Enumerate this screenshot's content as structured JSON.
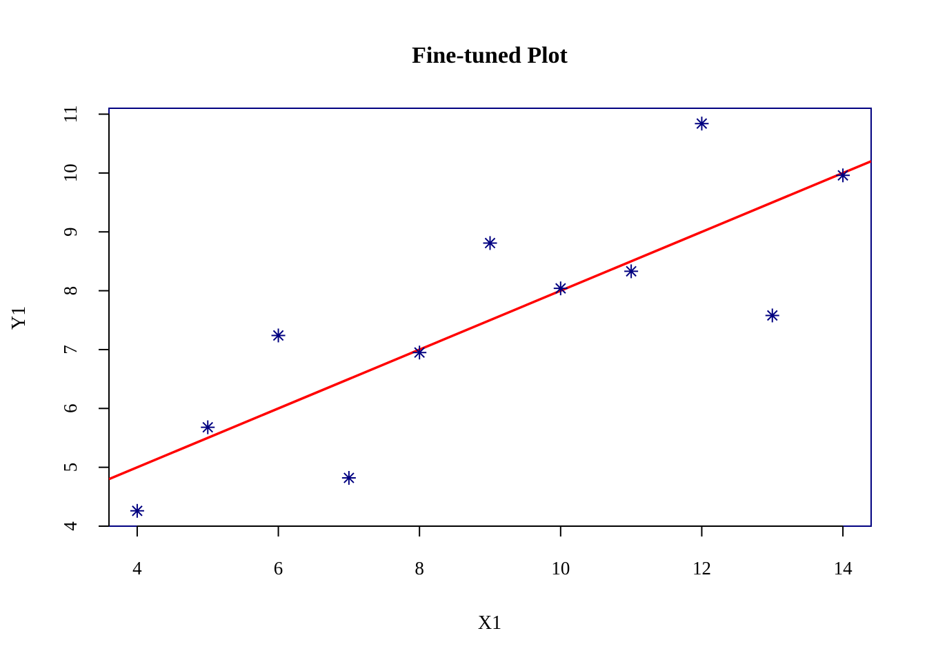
{
  "chart_data": {
    "type": "scatter",
    "title": "Fine-tuned Plot",
    "xlabel": "X1",
    "ylabel": "Y1",
    "xlim": [
      3.6,
      14.4
    ],
    "ylim": [
      4,
      11.1
    ],
    "x_ticks": [
      4,
      6,
      8,
      10,
      12,
      14
    ],
    "y_ticks": [
      4,
      5,
      6,
      7,
      8,
      9,
      10,
      11
    ],
    "x_tick_labels": [
      "4",
      "6",
      "8",
      "10",
      "12",
      "14"
    ],
    "y_tick_labels": [
      "4",
      "5",
      "6",
      "7",
      "8",
      "9",
      "10",
      "11"
    ],
    "grid": false,
    "legend": "none",
    "marker": "asterisk",
    "colors": {
      "points": "#000080",
      "box": "#000080",
      "axis": "#000000",
      "fit_line": "#ff0000"
    },
    "points": [
      {
        "x": 10,
        "y": 8.04
      },
      {
        "x": 8,
        "y": 6.95
      },
      {
        "x": 13,
        "y": 7.58
      },
      {
        "x": 9,
        "y": 8.81
      },
      {
        "x": 11,
        "y": 8.33
      },
      {
        "x": 14,
        "y": 9.96
      },
      {
        "x": 6,
        "y": 7.24
      },
      {
        "x": 4,
        "y": 4.26
      },
      {
        "x": 12,
        "y": 10.84
      },
      {
        "x": 7,
        "y": 4.82
      },
      {
        "x": 5,
        "y": 5.68
      }
    ],
    "fit_line": {
      "intercept": 3.0,
      "slope": 0.5
    }
  }
}
